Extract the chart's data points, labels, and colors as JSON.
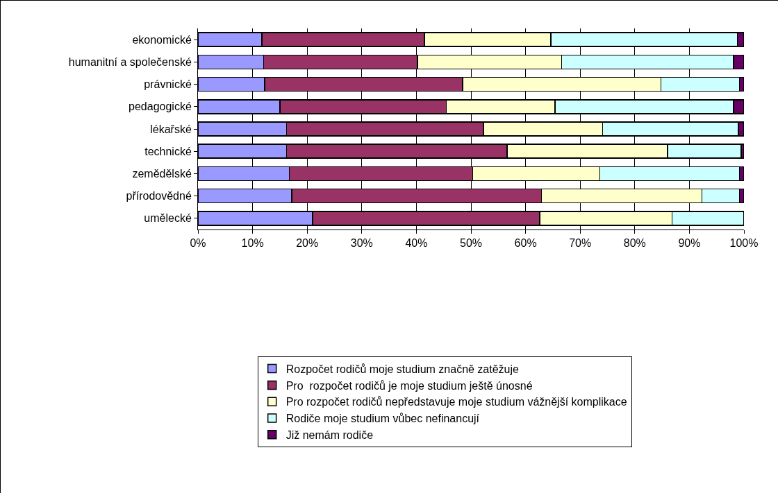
{
  "chart_data": {
    "type": "bar",
    "orientation": "horizontal",
    "stacked": true,
    "categories": [
      "ekonomické",
      "humanitní a společenské",
      "právnické",
      "pedagogické",
      "lékařské",
      "technické",
      "zemědělské",
      "přírodovědné",
      "umělecké"
    ],
    "series": [
      {
        "name": "Rozpočet rodičů moje studium značně zatěžuje",
        "color": "#9999ff",
        "values": [
          11.7,
          12,
          12.2,
          15,
          16.2,
          16.2,
          16.7,
          17.2,
          21
        ]
      },
      {
        "name": "Pro  rozpočet rodičů je moje studium ještě únosné",
        "color": "#993366",
        "values": [
          29.8,
          28.2,
          36.3,
          30.5,
          36.1,
          40.4,
          33.6,
          45.7,
          41.6
        ]
      },
      {
        "name": "Pro rozpočet rodičů nepředstavuje moje studium vážnější komplikace",
        "color": "#ffffcc",
        "values": [
          23.1,
          26.4,
          36.3,
          19.9,
          21.8,
          29.4,
          23.3,
          29.4,
          24.2
        ]
      },
      {
        "name": "Rodiče moje studium vůbec nefinancují",
        "color": "#ccffff",
        "values": [
          34.2,
          31.5,
          14.4,
          32.7,
          24.9,
          13.5,
          25.6,
          6.9,
          13.2
        ]
      },
      {
        "name": "Již nemám rodiče",
        "color": "#660066",
        "values": [
          1.2,
          1.9,
          0.8,
          1.9,
          1,
          0.5,
          0.8,
          0.8,
          null
        ]
      }
    ],
    "xlim": [
      0,
      100
    ],
    "xticks": [
      {
        "value": 0,
        "label": "0%"
      },
      {
        "value": 10,
        "label": "10%"
      },
      {
        "value": 20,
        "label": "20%"
      },
      {
        "value": 30,
        "label": "30%"
      },
      {
        "value": 40,
        "label": "40%"
      },
      {
        "value": 50,
        "label": "50%"
      },
      {
        "value": 60,
        "label": "60%"
      },
      {
        "value": 70,
        "label": "70%"
      },
      {
        "value": 80,
        "label": "80%"
      },
      {
        "value": 90,
        "label": "90%"
      },
      {
        "value": 100,
        "label": "100%"
      }
    ],
    "grid": "x",
    "legend": "bottom"
  }
}
